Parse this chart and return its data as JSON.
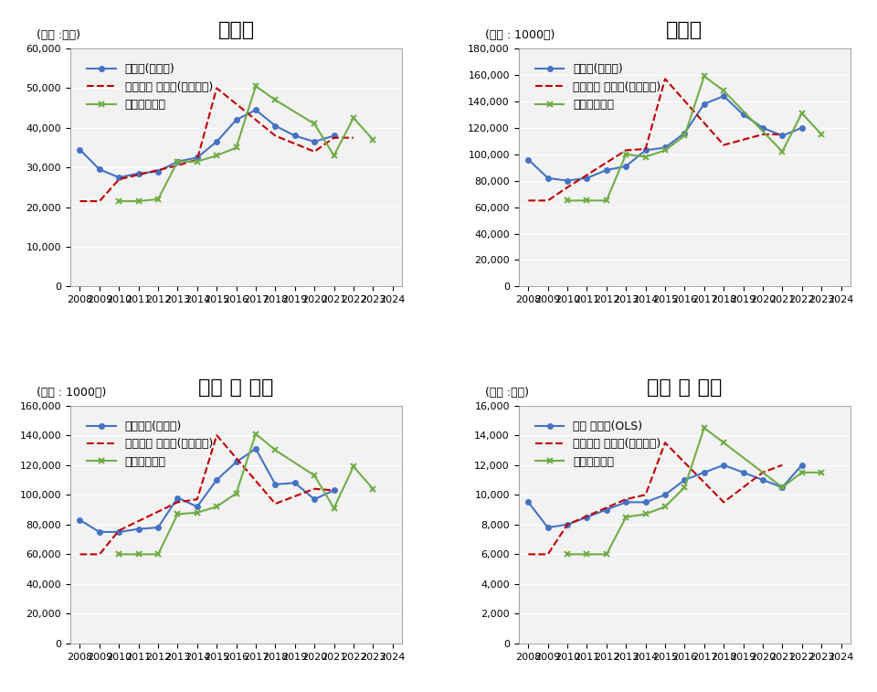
{
  "years": [
    2008,
    2009,
    2010,
    2011,
    2012,
    2013,
    2014,
    2015,
    2016,
    2017,
    2018,
    2019,
    2020,
    2021,
    2022,
    2023,
    2024
  ],
  "cement": {
    "title": "시멘트",
    "unit": "(단위 :천톤)",
    "ylim": [
      0,
      60000
    ],
    "yticks": [
      0,
      10000,
      20000,
      30000,
      40000,
      50000,
      60000
    ],
    "supply": [
      34500,
      29500,
      27500,
      28500,
      29000,
      31500,
      32500,
      36500,
      42000,
      44500,
      40500,
      38000,
      36500,
      38000,
      null,
      null,
      null
    ],
    "predicted": [
      21500,
      21500,
      27000,
      null,
      null,
      30500,
      32000,
      50000,
      null,
      null,
      38000,
      null,
      34000,
      37500,
      37500,
      null,
      null
    ],
    "future": [
      null,
      null,
      21500,
      21500,
      22000,
      31500,
      31500,
      33000,
      35000,
      50500,
      47000,
      null,
      41000,
      33000,
      42500,
      37000,
      null
    ],
    "legend1": "출하량(공급량)",
    "legend2": "착공예측 수요량(단순평균)",
    "legend3": "향후예상수요"
  },
  "remicon": {
    "title": "레미콘",
    "unit": "(단위 : 1000㎥)",
    "ylim": [
      0,
      180000
    ],
    "yticks": [
      0,
      20000,
      40000,
      60000,
      80000,
      100000,
      120000,
      140000,
      160000,
      180000
    ],
    "supply": [
      96000,
      82000,
      80000,
      82000,
      88000,
      91000,
      103000,
      105000,
      116000,
      138000,
      144000,
      130000,
      120000,
      114000,
      120000,
      null,
      null
    ],
    "predicted": [
      65000,
      65000,
      75000,
      null,
      null,
      103000,
      104000,
      157000,
      null,
      null,
      107000,
      null,
      115000,
      115000,
      null,
      null,
      null
    ],
    "future": [
      null,
      null,
      65000,
      65000,
      65000,
      100000,
      98000,
      103000,
      114000,
      159000,
      148000,
      null,
      null,
      102000,
      131000,
      115000,
      null
    ],
    "legend1": "출하량(공급량)",
    "legend2": "착공예측 수요량(단순평균)",
    "legend3": "향후예상수요"
  },
  "aggregate": {
    "title": "골재 및 석재",
    "unit": "(단위 : 1000㎥)",
    "ylim": [
      0,
      160000
    ],
    "yticks": [
      0,
      20000,
      40000,
      60000,
      80000,
      100000,
      120000,
      140000,
      160000
    ],
    "supply": [
      83000,
      75000,
      75000,
      77000,
      78000,
      98000,
      92000,
      110000,
      122000,
      131000,
      107000,
      108000,
      97000,
      103000,
      null,
      null,
      null
    ],
    "predicted": [
      60000,
      60000,
      76000,
      null,
      null,
      95000,
      97000,
      140000,
      null,
      null,
      94000,
      null,
      104000,
      103000,
      null,
      null,
      null
    ],
    "future": [
      null,
      null,
      60000,
      60000,
      60000,
      87000,
      88000,
      92000,
      101000,
      141000,
      130000,
      null,
      113000,
      91000,
      119000,
      104000,
      null
    ],
    "legend1": "채취실적(공급량)",
    "legend2": "착공예측 수요량(단순평균)",
    "legend3": "향후예상수요"
  },
  "rebar": {
    "title": "철근 및 봉강",
    "unit": "(단위 :천톤)",
    "ylim": [
      0,
      16000
    ],
    "yticks": [
      0,
      2000,
      4000,
      6000,
      8000,
      10000,
      12000,
      14000,
      16000
    ],
    "supply": [
      9500,
      7800,
      8000,
      8500,
      9000,
      9500,
      9500,
      10000,
      11000,
      11500,
      12000,
      11500,
      11000,
      10500,
      12000,
      null,
      null
    ],
    "predicted": [
      6000,
      6000,
      8000,
      null,
      null,
      9700,
      10000,
      13500,
      null,
      null,
      9500,
      null,
      11500,
      12000,
      null,
      null,
      null
    ],
    "future": [
      null,
      null,
      6000,
      6000,
      6000,
      8500,
      8700,
      9200,
      10500,
      14500,
      13500,
      null,
      null,
      10500,
      11500,
      11500,
      null
    ],
    "legend1": "추정 수요량(OLS)",
    "legend2": "착공예측 수요량(단순평균)",
    "legend3": "향후예상수요"
  },
  "line_color_supply": "#4472C4",
  "line_color_predicted": "#C00000",
  "line_color_future": "#70AD47",
  "bg_color": "#F2F2F2",
  "title_fontsize": 16,
  "label_fontsize": 9,
  "legend_fontsize": 9,
  "tick_fontsize": 8
}
